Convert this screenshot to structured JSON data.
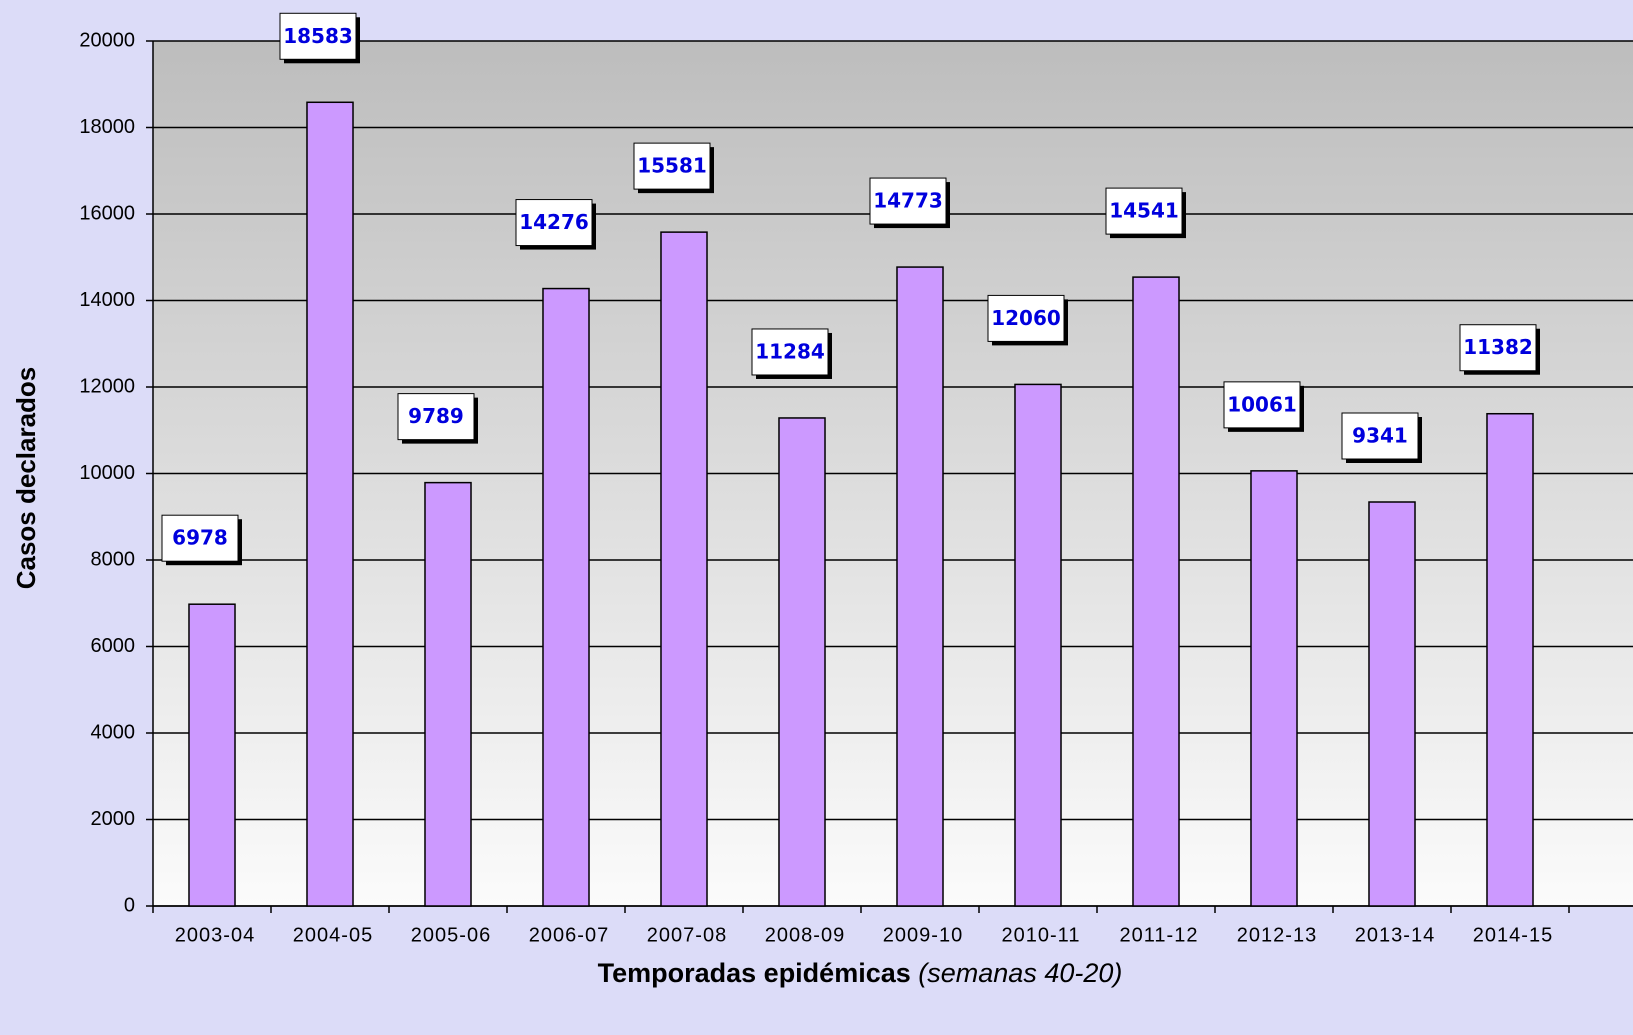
{
  "chart_data": {
    "type": "bar",
    "y_label": "Casos declarados",
    "x_label": "Temporadas epidémicas",
    "x_label_note": "(semanas 40-20)",
    "categories": [
      "2003-04",
      "2004-05",
      "2005-06",
      "2006-07",
      "2007-08",
      "2008-09",
      "2009-10",
      "2010-11",
      "2011-12",
      "2012-13",
      "2013-14",
      "2014-15"
    ],
    "values": [
      6978,
      18583,
      9789,
      14276,
      15581,
      11284,
      14773,
      12060,
      14541,
      10061,
      9341,
      11382
    ],
    "color": "#cc99ff",
    "ylim": [
      0,
      20000
    ],
    "yticks": [
      0,
      2000,
      4000,
      6000,
      8000,
      10000,
      12000,
      14000,
      16000,
      18000,
      20000
    ],
    "grid": true
  }
}
